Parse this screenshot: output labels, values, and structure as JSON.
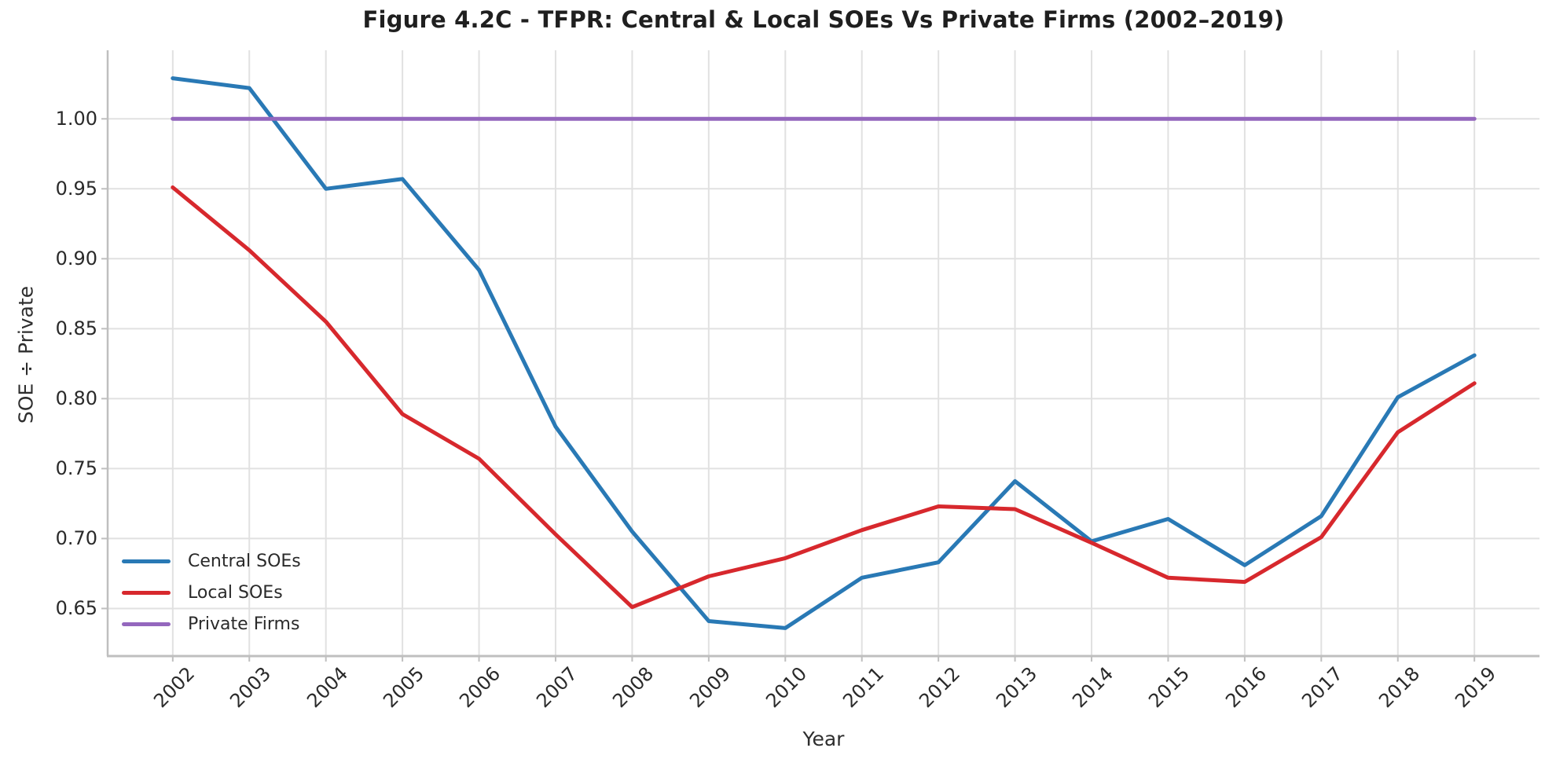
{
  "figure": {
    "title": "Figure 4.2C - TFPR: Central & Local SOEs Vs Private Firms (2002–2019)"
  },
  "chart_data": {
    "type": "line",
    "title": "Figure 4.2C - TFPR: Central & Local SOEs Vs Private Firms (2002–2019)",
    "xlabel": "Year",
    "ylabel": "SOE ÷ Private",
    "x": [
      2002,
      2003,
      2004,
      2005,
      2006,
      2007,
      2008,
      2009,
      2010,
      2011,
      2012,
      2013,
      2014,
      2015,
      2016,
      2017,
      2018,
      2019
    ],
    "series": [
      {
        "name": "Central SOEs",
        "color": "#2979b5",
        "values": [
          1.029,
          1.022,
          0.95,
          0.957,
          0.892,
          0.78,
          0.705,
          0.641,
          0.636,
          0.672,
          0.683,
          0.741,
          0.698,
          0.714,
          0.681,
          0.716,
          0.801,
          0.831
        ]
      },
      {
        "name": "Local SOEs",
        "color": "#d7282d",
        "values": [
          0.951,
          0.906,
          0.855,
          0.789,
          0.757,
          0.703,
          0.651,
          0.673,
          0.686,
          0.706,
          0.723,
          0.721,
          0.697,
          0.672,
          0.669,
          0.701,
          0.776,
          0.811
        ]
      },
      {
        "name": "Private Firms",
        "color": "#9467bd",
        "values": [
          1.0,
          1.0,
          1.0,
          1.0,
          1.0,
          1.0,
          1.0,
          1.0,
          1.0,
          1.0,
          1.0,
          1.0,
          1.0,
          1.0,
          1.0,
          1.0,
          1.0,
          1.0
        ]
      }
    ],
    "y_ticks": [
      0.65,
      0.7,
      0.75,
      0.8,
      0.85,
      0.9,
      0.95,
      1.0
    ],
    "ylim": [
      0.616,
      1.049
    ],
    "xlim": [
      2001.15,
      2019.85
    ],
    "grid": true,
    "legend_position": "lower left",
    "style": {
      "grid_color": "#e1e1e1",
      "spine_color": "#bfbfbf",
      "background": "#ffffff",
      "line_width": 5
    }
  }
}
